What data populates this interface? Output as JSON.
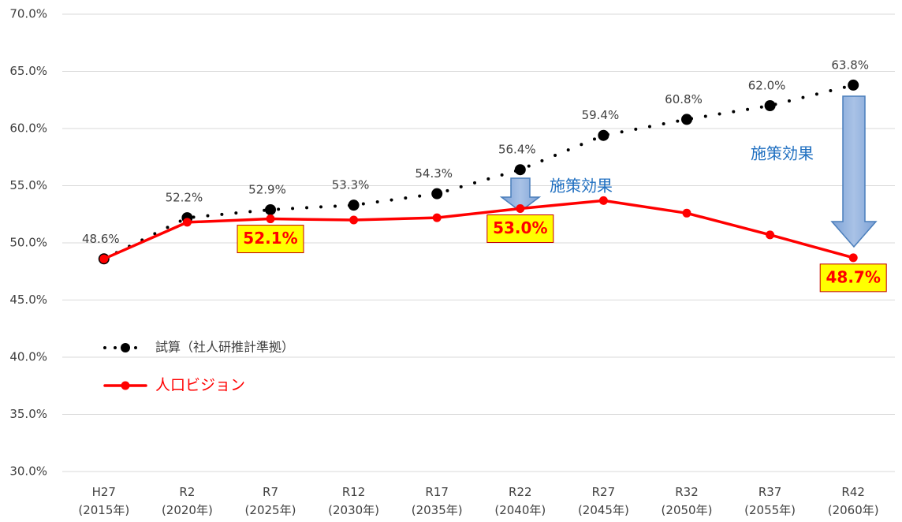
{
  "chart_data": {
    "type": "line",
    "categories": [
      "H27\n(2015年)",
      "R2\n(2020年)",
      "R7\n(2025年)",
      "R12\n(2030年)",
      "R17\n(2035年)",
      "R22\n(2040年)",
      "R27\n(2045年)",
      "R32\n(2050年)",
      "R37\n(2055年)",
      "R42\n(2060年)"
    ],
    "series": [
      {
        "name": "試算（社人研推計準拠）",
        "color": "#000000",
        "line_style": "dotted",
        "values": [
          48.6,
          52.2,
          52.9,
          53.3,
          54.3,
          56.4,
          59.4,
          60.8,
          62.0,
          63.8
        ],
        "value_labels": [
          "48.6%",
          "52.2%",
          "52.9%",
          "53.3%",
          "54.3%",
          "56.4%",
          "59.4%",
          "60.8%",
          "62.0%",
          "63.8%"
        ]
      },
      {
        "name": "人口ビジョン",
        "color": "#ff0000",
        "line_style": "solid",
        "values": [
          48.6,
          51.8,
          52.1,
          52.0,
          52.2,
          53.0,
          53.7,
          52.6,
          50.7,
          48.7
        ],
        "value_labels": [
          null,
          null,
          "52.1%",
          null,
          null,
          "53.0%",
          null,
          null,
          null,
          "48.7%"
        ]
      }
    ],
    "ylim": [
      30,
      70
    ],
    "yticks": [
      {
        "value": 30,
        "label": "30.0%"
      },
      {
        "value": 35,
        "label": "35.0%"
      },
      {
        "value": 40,
        "label": "40.0%"
      },
      {
        "value": 45,
        "label": "45.0%"
      },
      {
        "value": 50,
        "label": "50.0%"
      },
      {
        "value": 55,
        "label": "55.0%"
      },
      {
        "value": 60,
        "label": "60.0%"
      },
      {
        "value": 65,
        "label": "65.0%"
      },
      {
        "value": 70,
        "label": "70.0%"
      }
    ],
    "grid": true,
    "legend": "left",
    "annotations": [
      "施策効果",
      "施策効果"
    ]
  }
}
